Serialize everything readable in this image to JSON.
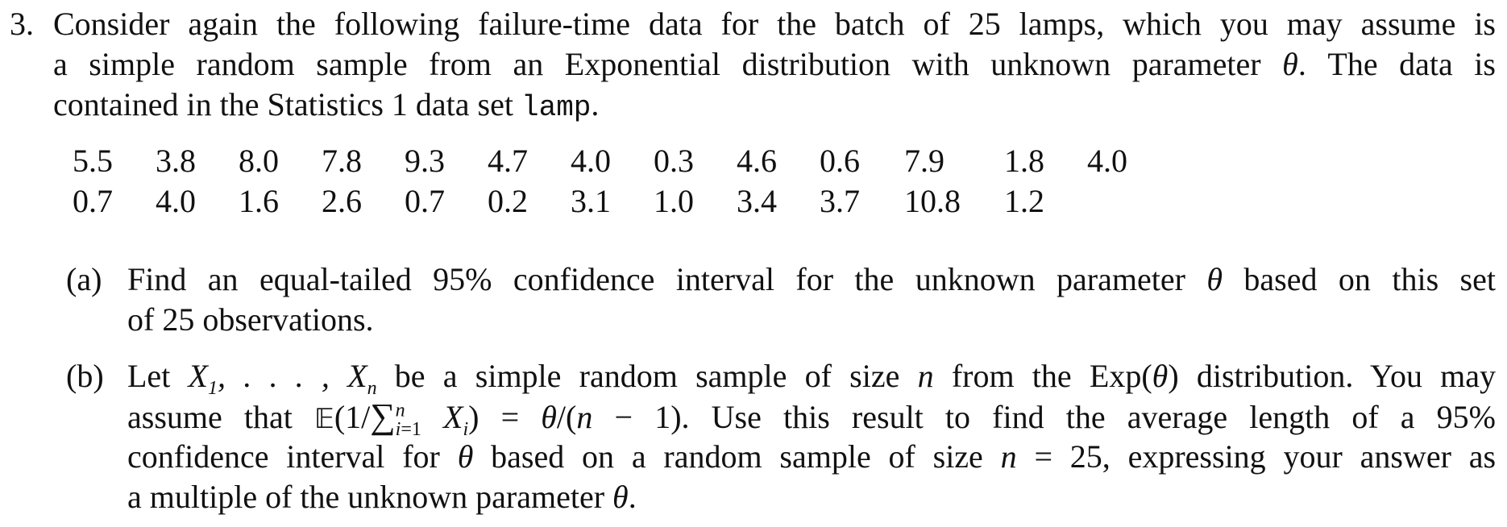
{
  "question": {
    "number": "3.",
    "intro_line1": "Consider again the following failure-time data for the batch of 25 lamps, which you may assume is",
    "intro_line2_before": "a simple random sample from an Exponential distribution with unknown parameter",
    "intro_line2_after": ". The data is",
    "intro_line3_before": "contained in the Statistics 1 data set",
    "intro_line3_code": "lamp",
    "intro_line3_after": ".",
    "theta": "θ"
  },
  "data_table": {
    "row1": [
      "5.5",
      "3.8",
      "8.0",
      "7.8",
      "9.3",
      "4.7",
      "4.0",
      "0.3",
      "4.6",
      "0.6",
      "7.9",
      "1.8",
      "4.0"
    ],
    "row2": [
      "0.7",
      "4.0",
      "1.6",
      "2.6",
      "0.7",
      "0.2",
      "3.1",
      "1.0",
      "3.4",
      "3.7",
      "10.8",
      "1.2"
    ]
  },
  "part_a": {
    "label": "(a)",
    "line1_before": "Find an equal-tailed 95% confidence interval for the unknown parameter",
    "line1_after": "based on this set",
    "line2": "of 25 observations."
  },
  "part_b": {
    "label": "(b)",
    "line1_a": "Let",
    "line1_b": "be a simple random sample of size",
    "line1_c": "from the Exp(",
    "line1_d": ") distribution. You may",
    "line2_a": "assume that",
    "line2_b": "Use this result to find the average length of a 95%",
    "line3_a": "confidence interval for",
    "line3_b": "based on a random sample of size",
    "line3_c": "= 25, expressing your answer as",
    "line4_a": "a multiple of the unknown parameter",
    "line4_b": "."
  }
}
